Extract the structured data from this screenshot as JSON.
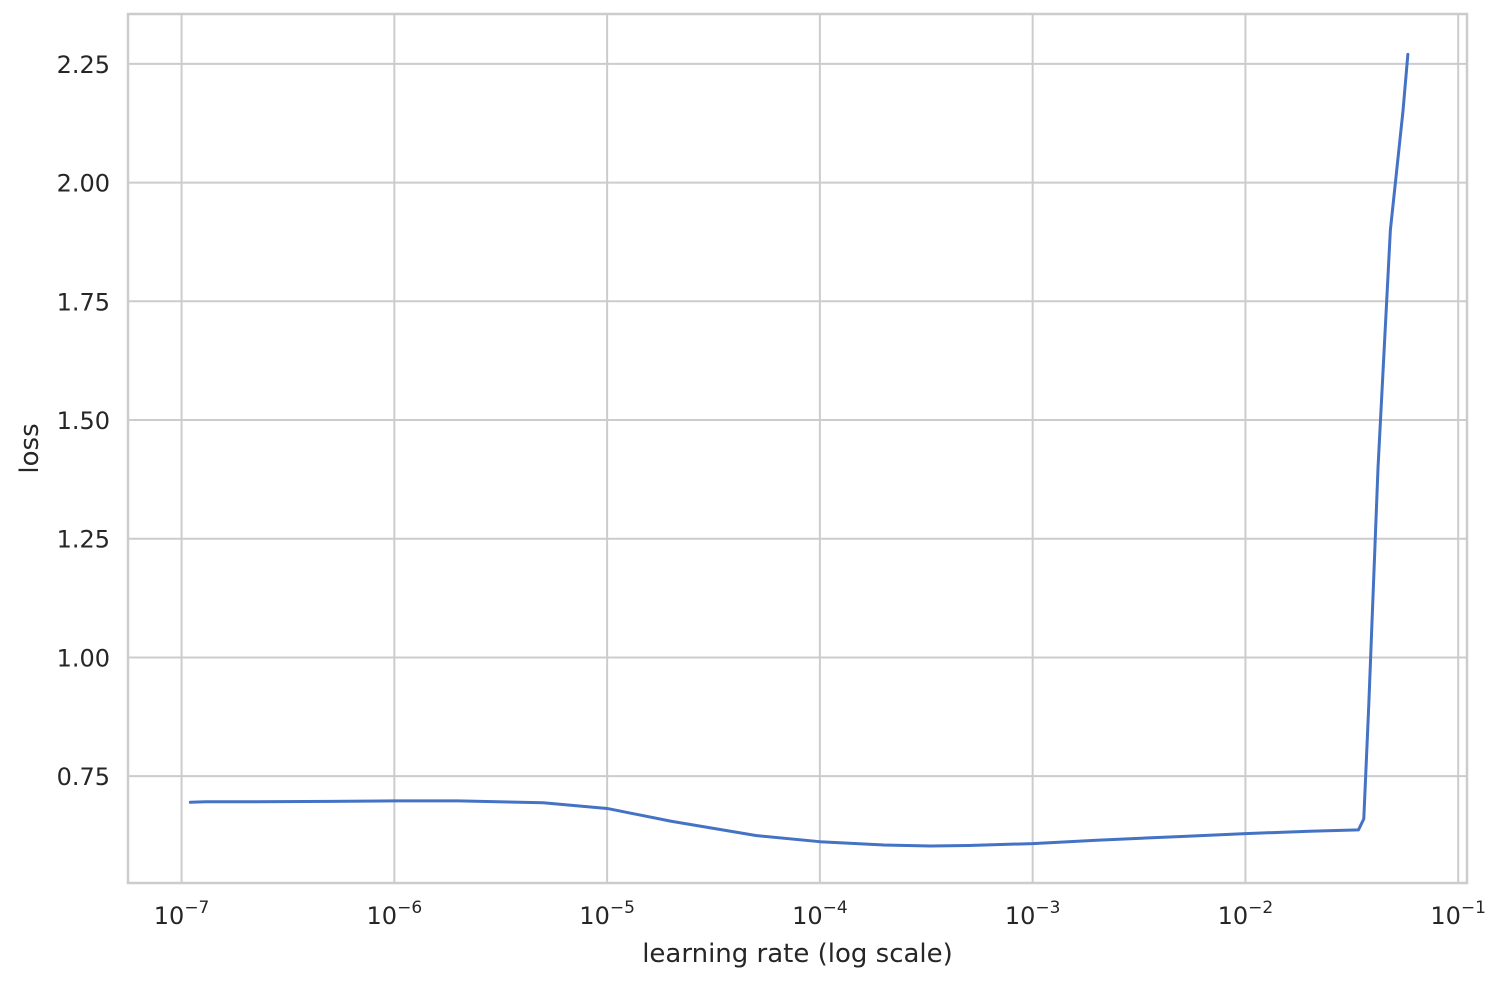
{
  "chart_data": {
    "type": "line",
    "title": "",
    "xlabel": "learning rate (log scale)",
    "ylabel": "loss",
    "x_scale": "log",
    "grid": true,
    "xlim": [
      5.6e-08,
      0.11
    ],
    "ylim": [
      0.525,
      2.355
    ],
    "x_ticks": [
      {
        "value": 1e-07,
        "base": "10",
        "exp": "−7"
      },
      {
        "value": 1e-06,
        "base": "10",
        "exp": "−6"
      },
      {
        "value": 1e-05,
        "base": "10",
        "exp": "−5"
      },
      {
        "value": 0.0001,
        "base": "10",
        "exp": "−4"
      },
      {
        "value": 0.001,
        "base": "10",
        "exp": "−3"
      },
      {
        "value": 0.01,
        "base": "10",
        "exp": "−2"
      },
      {
        "value": 0.1,
        "base": "10",
        "exp": "−1"
      }
    ],
    "y_ticks": [
      {
        "value": 0.75,
        "label": "0.75"
      },
      {
        "value": 1.0,
        "label": "1.00"
      },
      {
        "value": 1.25,
        "label": "1.25"
      },
      {
        "value": 1.5,
        "label": "1.50"
      },
      {
        "value": 1.75,
        "label": "1.75"
      },
      {
        "value": 2.0,
        "label": "2.00"
      },
      {
        "value": 2.25,
        "label": "2.25"
      }
    ],
    "series": [
      {
        "color": "#4472c4",
        "x": [
          1.1e-07,
          1.3e-07,
          2e-07,
          5e-07,
          1e-06,
          2e-06,
          5e-06,
          1e-05,
          2e-05,
          5e-05,
          0.0001,
          0.0002,
          0.00033,
          0.0005,
          0.001,
          0.002,
          0.005,
          0.01,
          0.02,
          0.034,
          0.036,
          0.038,
          0.042,
          0.048,
          0.055,
          0.058
        ],
        "y": [
          0.695,
          0.696,
          0.696,
          0.697,
          0.698,
          0.698,
          0.694,
          0.682,
          0.655,
          0.625,
          0.612,
          0.605,
          0.603,
          0.604,
          0.608,
          0.615,
          0.623,
          0.629,
          0.634,
          0.637,
          0.66,
          0.9,
          1.4,
          1.9,
          2.15,
          2.27
        ]
      }
    ]
  }
}
